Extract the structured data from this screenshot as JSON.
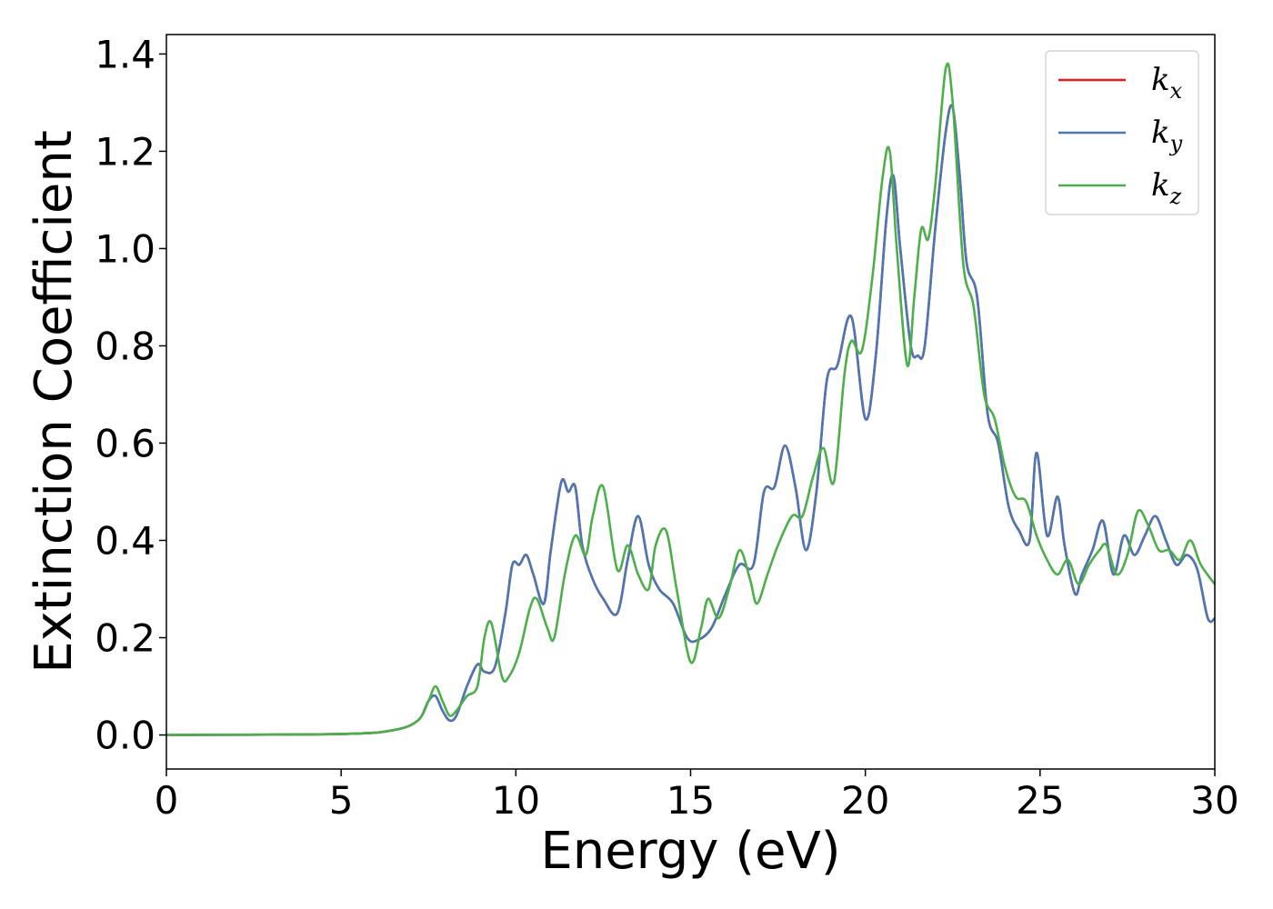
{
  "chart_data": {
    "type": "line",
    "title": "",
    "xlabel": "Energy (eV)",
    "ylabel": "Extinction Coefficient",
    "xlim": [
      0,
      30
    ],
    "ylim": [
      -0.07,
      1.44
    ],
    "xticks": [
      0,
      5,
      10,
      15,
      20,
      25,
      30
    ],
    "xtick_labels": [
      "0",
      "5",
      "10",
      "15",
      "20",
      "25",
      "30"
    ],
    "yticks": [
      0.0,
      0.2,
      0.4,
      0.6,
      0.8,
      1.0,
      1.2,
      1.4
    ],
    "ytick_labels": [
      "0.0",
      "0.2",
      "0.4",
      "0.6",
      "0.8",
      "1.0",
      "1.2",
      "1.4"
    ],
    "grid": false,
    "legend_position": "top-right",
    "series": [
      {
        "name": "kx",
        "label_base": "k",
        "label_sub": "x",
        "color": "#e41a1c",
        "x": [
          0,
          5,
          6.5,
          7.2,
          7.5,
          7.7,
          7.9,
          8.1,
          8.3,
          8.6,
          8.9,
          9.1,
          9.4,
          9.7,
          9.9,
          10.1,
          10.3,
          10.5,
          10.8,
          11.0,
          11.3,
          11.5,
          11.7,
          11.9,
          12.2,
          12.5,
          12.9,
          13.2,
          13.5,
          13.8,
          14.1,
          14.5,
          14.9,
          15.2,
          15.6,
          16.0,
          16.4,
          16.8,
          17.1,
          17.4,
          17.7,
          18.0,
          18.3,
          18.6,
          18.9,
          19.2,
          19.6,
          20.0,
          20.3,
          20.6,
          20.8,
          21.0,
          21.3,
          21.5,
          21.7,
          22.0,
          22.3,
          22.5,
          22.7,
          22.9,
          23.2,
          23.5,
          23.8,
          24.1,
          24.4,
          24.7,
          24.9,
          25.2,
          25.5,
          25.7,
          26.0,
          26.2,
          26.5,
          26.8,
          27.1,
          27.4,
          27.7,
          28.0,
          28.3,
          28.6,
          28.9,
          29.2,
          29.5,
          29.8,
          30.0
        ],
        "y": [
          0.0,
          0.002,
          0.01,
          0.03,
          0.07,
          0.08,
          0.05,
          0.03,
          0.04,
          0.1,
          0.145,
          0.13,
          0.14,
          0.25,
          0.35,
          0.35,
          0.37,
          0.33,
          0.27,
          0.38,
          0.52,
          0.5,
          0.51,
          0.39,
          0.32,
          0.28,
          0.25,
          0.36,
          0.45,
          0.35,
          0.3,
          0.27,
          0.2,
          0.195,
          0.22,
          0.29,
          0.35,
          0.35,
          0.5,
          0.51,
          0.595,
          0.51,
          0.38,
          0.5,
          0.73,
          0.76,
          0.86,
          0.65,
          0.78,
          1.06,
          1.15,
          1.0,
          0.8,
          0.78,
          0.8,
          1.04,
          1.24,
          1.29,
          1.15,
          0.97,
          0.9,
          0.66,
          0.6,
          0.47,
          0.42,
          0.4,
          0.58,
          0.41,
          0.49,
          0.39,
          0.29,
          0.33,
          0.38,
          0.44,
          0.33,
          0.41,
          0.37,
          0.41,
          0.45,
          0.4,
          0.35,
          0.37,
          0.34,
          0.24,
          0.24
        ]
      },
      {
        "name": "ky",
        "label_base": "k",
        "label_sub": "y",
        "color": "#4a78b5",
        "x": [
          0,
          5,
          6.5,
          7.2,
          7.5,
          7.7,
          7.9,
          8.1,
          8.3,
          8.6,
          8.9,
          9.1,
          9.4,
          9.7,
          9.9,
          10.1,
          10.3,
          10.5,
          10.8,
          11.0,
          11.3,
          11.5,
          11.7,
          11.9,
          12.2,
          12.5,
          12.9,
          13.2,
          13.5,
          13.8,
          14.1,
          14.5,
          14.9,
          15.2,
          15.6,
          16.0,
          16.4,
          16.8,
          17.1,
          17.4,
          17.7,
          18.0,
          18.3,
          18.6,
          18.9,
          19.2,
          19.6,
          20.0,
          20.3,
          20.6,
          20.8,
          21.0,
          21.3,
          21.5,
          21.7,
          22.0,
          22.3,
          22.5,
          22.7,
          22.9,
          23.2,
          23.5,
          23.8,
          24.1,
          24.4,
          24.7,
          24.9,
          25.2,
          25.5,
          25.7,
          26.0,
          26.2,
          26.5,
          26.8,
          27.1,
          27.4,
          27.7,
          28.0,
          28.3,
          28.6,
          28.9,
          29.2,
          29.5,
          29.8,
          30.0
        ],
        "y": [
          0.0,
          0.002,
          0.01,
          0.03,
          0.07,
          0.08,
          0.05,
          0.03,
          0.04,
          0.1,
          0.145,
          0.13,
          0.14,
          0.25,
          0.35,
          0.35,
          0.37,
          0.33,
          0.27,
          0.38,
          0.52,
          0.5,
          0.51,
          0.39,
          0.32,
          0.28,
          0.25,
          0.36,
          0.45,
          0.35,
          0.3,
          0.27,
          0.2,
          0.195,
          0.22,
          0.29,
          0.35,
          0.35,
          0.5,
          0.51,
          0.595,
          0.51,
          0.38,
          0.5,
          0.73,
          0.76,
          0.86,
          0.65,
          0.78,
          1.06,
          1.15,
          1.0,
          0.8,
          0.78,
          0.8,
          1.04,
          1.24,
          1.29,
          1.15,
          0.97,
          0.9,
          0.66,
          0.6,
          0.47,
          0.42,
          0.4,
          0.58,
          0.41,
          0.49,
          0.39,
          0.29,
          0.33,
          0.38,
          0.44,
          0.33,
          0.41,
          0.37,
          0.41,
          0.45,
          0.4,
          0.35,
          0.37,
          0.34,
          0.24,
          0.24
        ]
      },
      {
        "name": "kz",
        "label_base": "k",
        "label_sub": "z",
        "color": "#4daf4a",
        "x": [
          0,
          5,
          6.5,
          7.2,
          7.5,
          7.7,
          7.9,
          8.1,
          8.3,
          8.6,
          8.9,
          9.1,
          9.3,
          9.6,
          9.8,
          10.1,
          10.4,
          10.6,
          10.9,
          11.1,
          11.4,
          11.7,
          12.0,
          12.2,
          12.5,
          12.9,
          13.2,
          13.5,
          13.8,
          14.0,
          14.3,
          14.6,
          15.0,
          15.3,
          15.5,
          15.8,
          16.1,
          16.4,
          16.7,
          16.9,
          17.2,
          17.5,
          17.9,
          18.2,
          18.5,
          18.8,
          19.1,
          19.4,
          19.6,
          19.9,
          20.2,
          20.5,
          20.7,
          20.9,
          21.2,
          21.4,
          21.6,
          21.8,
          22.0,
          22.3,
          22.5,
          22.8,
          23.1,
          23.4,
          23.7,
          24.0,
          24.3,
          24.6,
          24.9,
          25.2,
          25.5,
          25.8,
          26.1,
          26.4,
          26.7,
          26.9,
          27.2,
          27.5,
          27.8,
          28.1,
          28.4,
          28.7,
          29.0,
          29.3,
          29.6,
          30.0
        ],
        "y": [
          0.0,
          0.002,
          0.01,
          0.03,
          0.07,
          0.1,
          0.07,
          0.04,
          0.05,
          0.08,
          0.1,
          0.2,
          0.23,
          0.12,
          0.12,
          0.17,
          0.26,
          0.28,
          0.22,
          0.2,
          0.33,
          0.41,
          0.37,
          0.45,
          0.51,
          0.34,
          0.39,
          0.33,
          0.3,
          0.39,
          0.42,
          0.3,
          0.15,
          0.22,
          0.28,
          0.24,
          0.3,
          0.38,
          0.32,
          0.27,
          0.33,
          0.39,
          0.45,
          0.45,
          0.53,
          0.59,
          0.52,
          0.74,
          0.81,
          0.79,
          0.94,
          1.15,
          1.2,
          1.0,
          0.76,
          0.9,
          1.04,
          1.02,
          1.13,
          1.37,
          1.3,
          0.97,
          0.88,
          0.7,
          0.65,
          0.55,
          0.49,
          0.48,
          0.41,
          0.36,
          0.33,
          0.36,
          0.31,
          0.35,
          0.38,
          0.39,
          0.33,
          0.37,
          0.46,
          0.43,
          0.38,
          0.38,
          0.36,
          0.4,
          0.35,
          0.31
        ]
      }
    ]
  }
}
